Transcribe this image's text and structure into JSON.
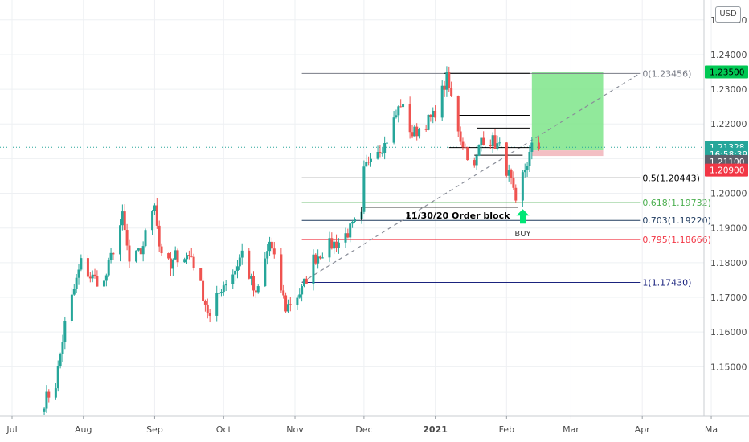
{
  "currency_label": "USD",
  "colors": {
    "up": "#26a69a",
    "down": "#ef5350",
    "fib_0": "#787b86",
    "fib_05": "#000000",
    "fib_0618": "#4caf50",
    "fib_0703": "#1e3a5f",
    "fib_0795": "#f23645",
    "fib_1": "#1a237e",
    "target_zone": "#7ee58a",
    "stop_zone": "#f2b8be",
    "current_price": "#2a2e39"
  },
  "chart_data": {
    "type": "candlestick",
    "title": "",
    "ylim": [
      1.1415,
      1.2525
    ],
    "y_ticks": [
      "1.25000",
      "1.24000",
      "1.23000",
      "1.22000",
      "1.21000",
      "1.20000",
      "1.19000",
      "1.18000",
      "1.17000",
      "1.16000",
      "1.15000"
    ],
    "x_ticks": [
      "Jul",
      "Aug",
      "Sep",
      "Oct",
      "Nov",
      "Dec",
      "2021",
      "Feb",
      "Mar",
      "Apr",
      "Ma"
    ],
    "bold_x_tick": "2021",
    "close_path": [
      [
        "2020-07-15",
        1.14
      ],
      [
        "2020-07-20",
        1.145
      ],
      [
        "2020-07-24",
        1.162
      ],
      [
        "2020-07-31",
        1.18
      ],
      [
        "2020-08-04",
        1.176
      ],
      [
        "2020-08-10",
        1.174
      ],
      [
        "2020-08-14",
        1.184
      ],
      [
        "2020-08-18",
        1.193
      ],
      [
        "2020-08-21",
        1.18
      ],
      [
        "2020-08-26",
        1.183
      ],
      [
        "2020-09-01",
        1.198
      ],
      [
        "2020-09-03",
        1.185
      ],
      [
        "2020-09-08",
        1.178
      ],
      [
        "2020-09-10",
        1.182
      ],
      [
        "2020-09-17",
        1.182
      ],
      [
        "2020-09-25",
        1.164
      ],
      [
        "2020-09-30",
        1.173
      ],
      [
        "2020-10-06",
        1.178
      ],
      [
        "2020-10-09",
        1.183
      ],
      [
        "2020-10-15",
        1.17
      ],
      [
        "2020-10-21",
        1.186
      ],
      [
        "2020-10-28",
        1.167
      ],
      [
        "2020-11-04",
        1.172
      ],
      [
        "2020-11-09",
        1.181
      ],
      [
        "2020-11-16",
        1.185
      ],
      [
        "2020-11-20",
        1.186
      ],
      [
        "2020-11-30",
        1.193
      ],
      [
        "2020-12-01",
        1.206
      ],
      [
        "2020-12-04",
        1.212
      ],
      [
        "2020-12-10",
        1.214
      ],
      [
        "2020-12-17",
        1.226
      ],
      [
        "2020-12-22",
        1.217
      ],
      [
        "2020-12-31",
        1.222
      ],
      [
        "2021-01-06",
        1.233
      ],
      [
        "2021-01-12",
        1.216
      ],
      [
        "2021-01-18",
        1.207
      ],
      [
        "2021-01-21",
        1.216
      ],
      [
        "2021-01-26",
        1.215
      ],
      [
        "2021-01-29",
        1.213
      ],
      [
        "2021-02-03",
        1.203
      ],
      [
        "2021-02-05",
        1.196
      ],
      [
        "2021-02-08",
        1.205
      ],
      [
        "2021-02-12",
        1.213
      ],
      [
        "2021-02-15",
        1.2133
      ]
    ],
    "fibonacci": [
      {
        "ratio_label": "0(1.23456)",
        "price": 1.23456,
        "color_key": "fib_0"
      },
      {
        "ratio_label": "0.5(1.20443)",
        "price": 1.20443,
        "color_key": "fib_05"
      },
      {
        "ratio_label": "0.618(1.19732)",
        "price": 1.19732,
        "color_key": "fib_0618"
      },
      {
        "ratio_label": "0.703(1.19220)",
        "price": 1.1922,
        "color_key": "fib_0703"
      },
      {
        "ratio_label": "0.795(1.18666)",
        "price": 1.18666,
        "color_key": "fib_0795"
      },
      {
        "ratio_label": "1(1.17430)",
        "price": 1.1743,
        "color_key": "fib_1"
      }
    ],
    "fib_start_date": "2020-11-04",
    "fib_end_date": "2021-03-31",
    "trend_line": {
      "from": [
        "2020-11-04",
        1.1743
      ],
      "to": [
        "2021-03-31",
        1.2346
      ]
    },
    "horizontal_levels": [
      {
        "from": "2021-01-05",
        "to": "2021-02-11",
        "price": 1.2346
      },
      {
        "from": "2021-01-11",
        "to": "2021-02-11",
        "price": 1.2225
      },
      {
        "from": "2021-01-19",
        "to": "2021-02-11",
        "price": 1.2188
      },
      {
        "from": "2021-01-07",
        "to": "2021-02-12",
        "price": 1.2132
      },
      {
        "from": "2021-01-18",
        "to": "2021-02-08",
        "price": 1.211
      },
      {
        "from": "2020-11-30",
        "to": "2021-02-06",
        "price": 1.196
      }
    ],
    "order_block": {
      "label": "11/30/20 Order block",
      "from": "2020-11-30",
      "to": "2021-02-06",
      "high": 1.196,
      "low": 1.1922
    },
    "position": {
      "from": "2021-02-12",
      "to": "2021-03-15",
      "entry": 1.211,
      "target": 1.235,
      "stop": 1.209
    },
    "buy_marker": {
      "label": "BUY",
      "date": "2021-02-07",
      "price": 1.1922
    },
    "price_badges": [
      {
        "text": "1.23500",
        "price": 1.235,
        "bg": "#00c853",
        "fg": "#000000"
      },
      {
        "text": "1.21328",
        "price": 1.21328,
        "bg": "#26a69a",
        "fg": "#ffffff"
      },
      {
        "text": "16:58:39",
        "price": 1.2113,
        "bg": "#26a69a",
        "fg": "#ffffff"
      },
      {
        "text": "1.21100",
        "price": 1.2092,
        "bg": "#5d606b",
        "fg": "#ffffff"
      },
      {
        "text": "1.20900",
        "price": 1.2067,
        "bg": "#f23645",
        "fg": "#ffffff"
      }
    ],
    "current_price": 1.21328
  }
}
